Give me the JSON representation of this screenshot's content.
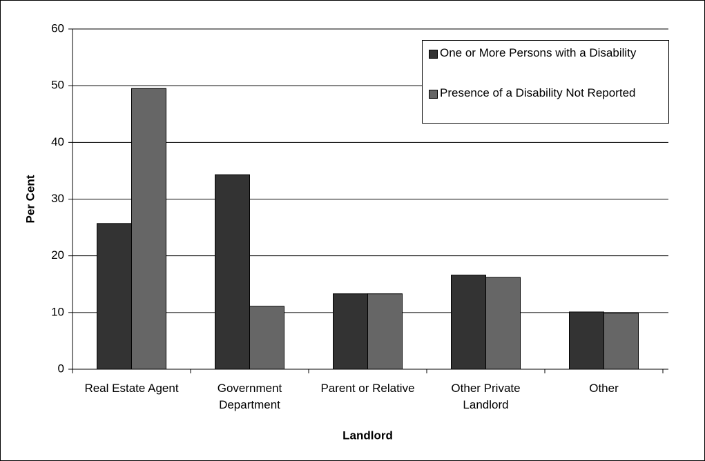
{
  "chart_data": {
    "type": "bar",
    "xlabel": "Landlord",
    "ylabel": "Per Cent",
    "categories": [
      "Real Estate Agent",
      "Government Department",
      "Parent or Relative",
      "Other Private Landlord",
      "Other"
    ],
    "series": [
      {
        "name": "One or More Persons with a Disability",
        "color": "#333333",
        "values": [
          25.7,
          34.3,
          13.3,
          16.6,
          10.1
        ]
      },
      {
        "name": "Presence of a Disability Not Reported",
        "color": "#666666",
        "values": [
          49.5,
          11.1,
          13.3,
          16.2,
          9.9
        ]
      }
    ],
    "ylim": [
      0,
      60
    ],
    "yticks": [
      0,
      10,
      20,
      30,
      40,
      50,
      60
    ],
    "grid": true,
    "legend": "upper right"
  }
}
